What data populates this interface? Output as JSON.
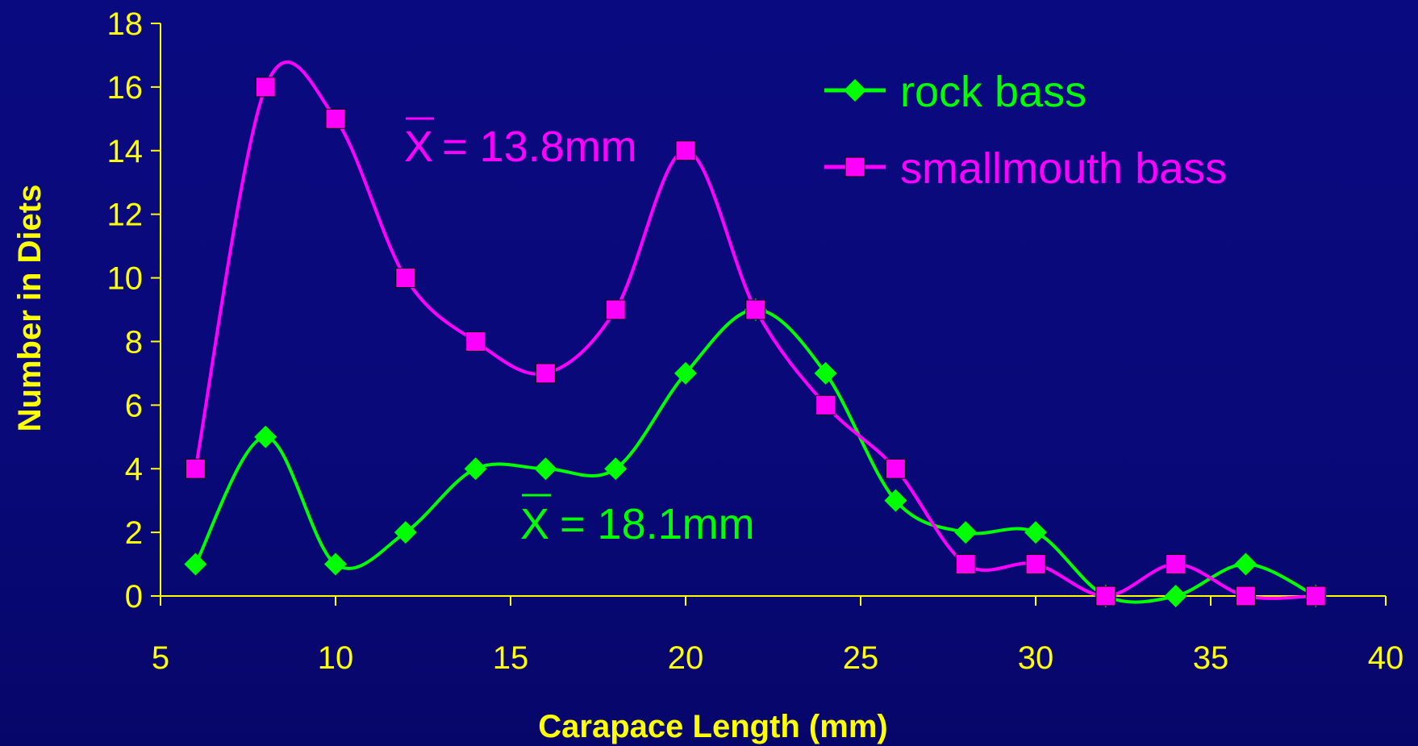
{
  "chart_data": {
    "type": "line",
    "xlabel": "Carapace Length (mm)",
    "ylabel": "Number in Diets",
    "xlim": [
      5,
      40
    ],
    "ylim": [
      0,
      18
    ],
    "xticks": [
      5,
      10,
      15,
      20,
      25,
      30,
      35,
      40
    ],
    "yticks": [
      0,
      2,
      4,
      6,
      8,
      10,
      12,
      14,
      16,
      18
    ],
    "grid": false,
    "legend_position": "top-right",
    "series": [
      {
        "name": "rock bass",
        "color": "#00ff00",
        "marker": "diamond",
        "x": [
          6,
          8,
          10,
          12,
          14,
          16,
          18,
          20,
          22,
          24,
          26,
          28,
          30,
          32,
          34,
          36,
          38
        ],
        "y": [
          1,
          5,
          1,
          2,
          4,
          4,
          4,
          7,
          9,
          7,
          3,
          2,
          2,
          0,
          0,
          1,
          0
        ]
      },
      {
        "name": "smallmouth bass",
        "color": "#ff00ff",
        "marker": "square",
        "x": [
          6,
          8,
          10,
          12,
          14,
          16,
          18,
          20,
          22,
          24,
          26,
          28,
          30,
          32,
          34,
          36,
          38
        ],
        "y": [
          4,
          16,
          15,
          10,
          8,
          7,
          9,
          14,
          9,
          6,
          4,
          1,
          1,
          0,
          1,
          0,
          0
        ]
      }
    ],
    "annotations": [
      {
        "symbol": "X",
        "text": "= 13.8mm",
        "color": "#ff00ff"
      },
      {
        "symbol": "X",
        "text": "= 18.1mm",
        "color": "#00ff00"
      }
    ]
  }
}
